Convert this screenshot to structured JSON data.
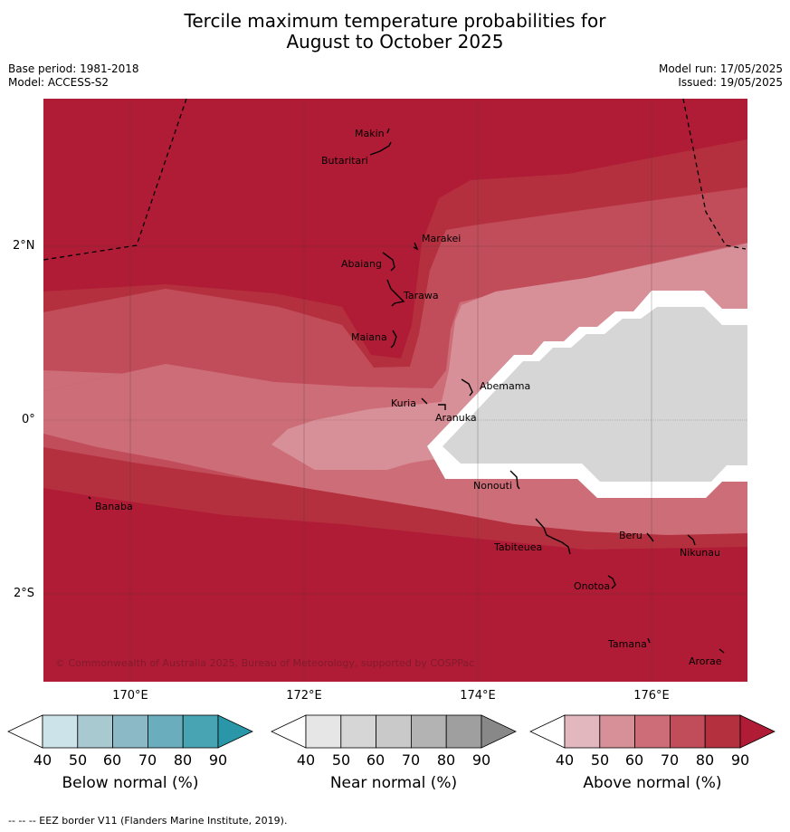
{
  "title_line1": "Tercile maximum temperature probabilities for",
  "title_line2": "August to October 2025",
  "base_period": "Base period: 1981-2018",
  "model": "Model: ACCESS-S2",
  "model_run": "Model run: 17/05/2025",
  "issued": "Issued: 19/05/2025",
  "lat_labels": [
    "2°N",
    "0°",
    "2°S"
  ],
  "lon_labels": [
    "170°E",
    "172°E",
    "174°E",
    "176°E"
  ],
  "places": [
    {
      "name": "Makin"
    },
    {
      "name": "Butaritari"
    },
    {
      "name": "Marakei"
    },
    {
      "name": "Abaiang"
    },
    {
      "name": "Tarawa"
    },
    {
      "name": "Maiana"
    },
    {
      "name": "Abemama"
    },
    {
      "name": "Kuria"
    },
    {
      "name": "Aranuka"
    },
    {
      "name": "Nonouti"
    },
    {
      "name": "Banaba"
    },
    {
      "name": "Beru"
    },
    {
      "name": "Nikunau"
    },
    {
      "name": "Tabiteuea"
    },
    {
      "name": "Onotoa"
    },
    {
      "name": "Tamana"
    },
    {
      "name": "Arorae"
    }
  ],
  "copyright": "© Commonwealth of Australia 2025, Bureau of Meteorology, supported by COSPPac",
  "colorbars": [
    {
      "label": "Below normal (%)",
      "ticks": [
        "40",
        "50",
        "60",
        "70",
        "80",
        "90"
      ],
      "colors": [
        "#ffffff",
        "#cce3ea",
        "#a9c9d1",
        "#8bb9c6",
        "#6aadbd",
        "#48a3b3",
        "#2a97a8"
      ]
    },
    {
      "label": "Near normal (%)",
      "ticks": [
        "40",
        "50",
        "60",
        "70",
        "80",
        "90"
      ],
      "colors": [
        "#ffffff",
        "#e6e6e6",
        "#d6d6d6",
        "#c9c9c9",
        "#b3b3b3",
        "#9f9f9f",
        "#888888"
      ]
    },
    {
      "label": "Above normal (%)",
      "ticks": [
        "40",
        "50",
        "60",
        "70",
        "80",
        "90"
      ],
      "colors": [
        "#ffffff",
        "#e2b7bd",
        "#d78f98",
        "#cc6d78",
        "#c14c5a",
        "#b5303e",
        "#b01c36"
      ]
    }
  ],
  "footnote": "-- -- -- EEZ border V11 (Flanders Marine Institute, 2019)."
}
